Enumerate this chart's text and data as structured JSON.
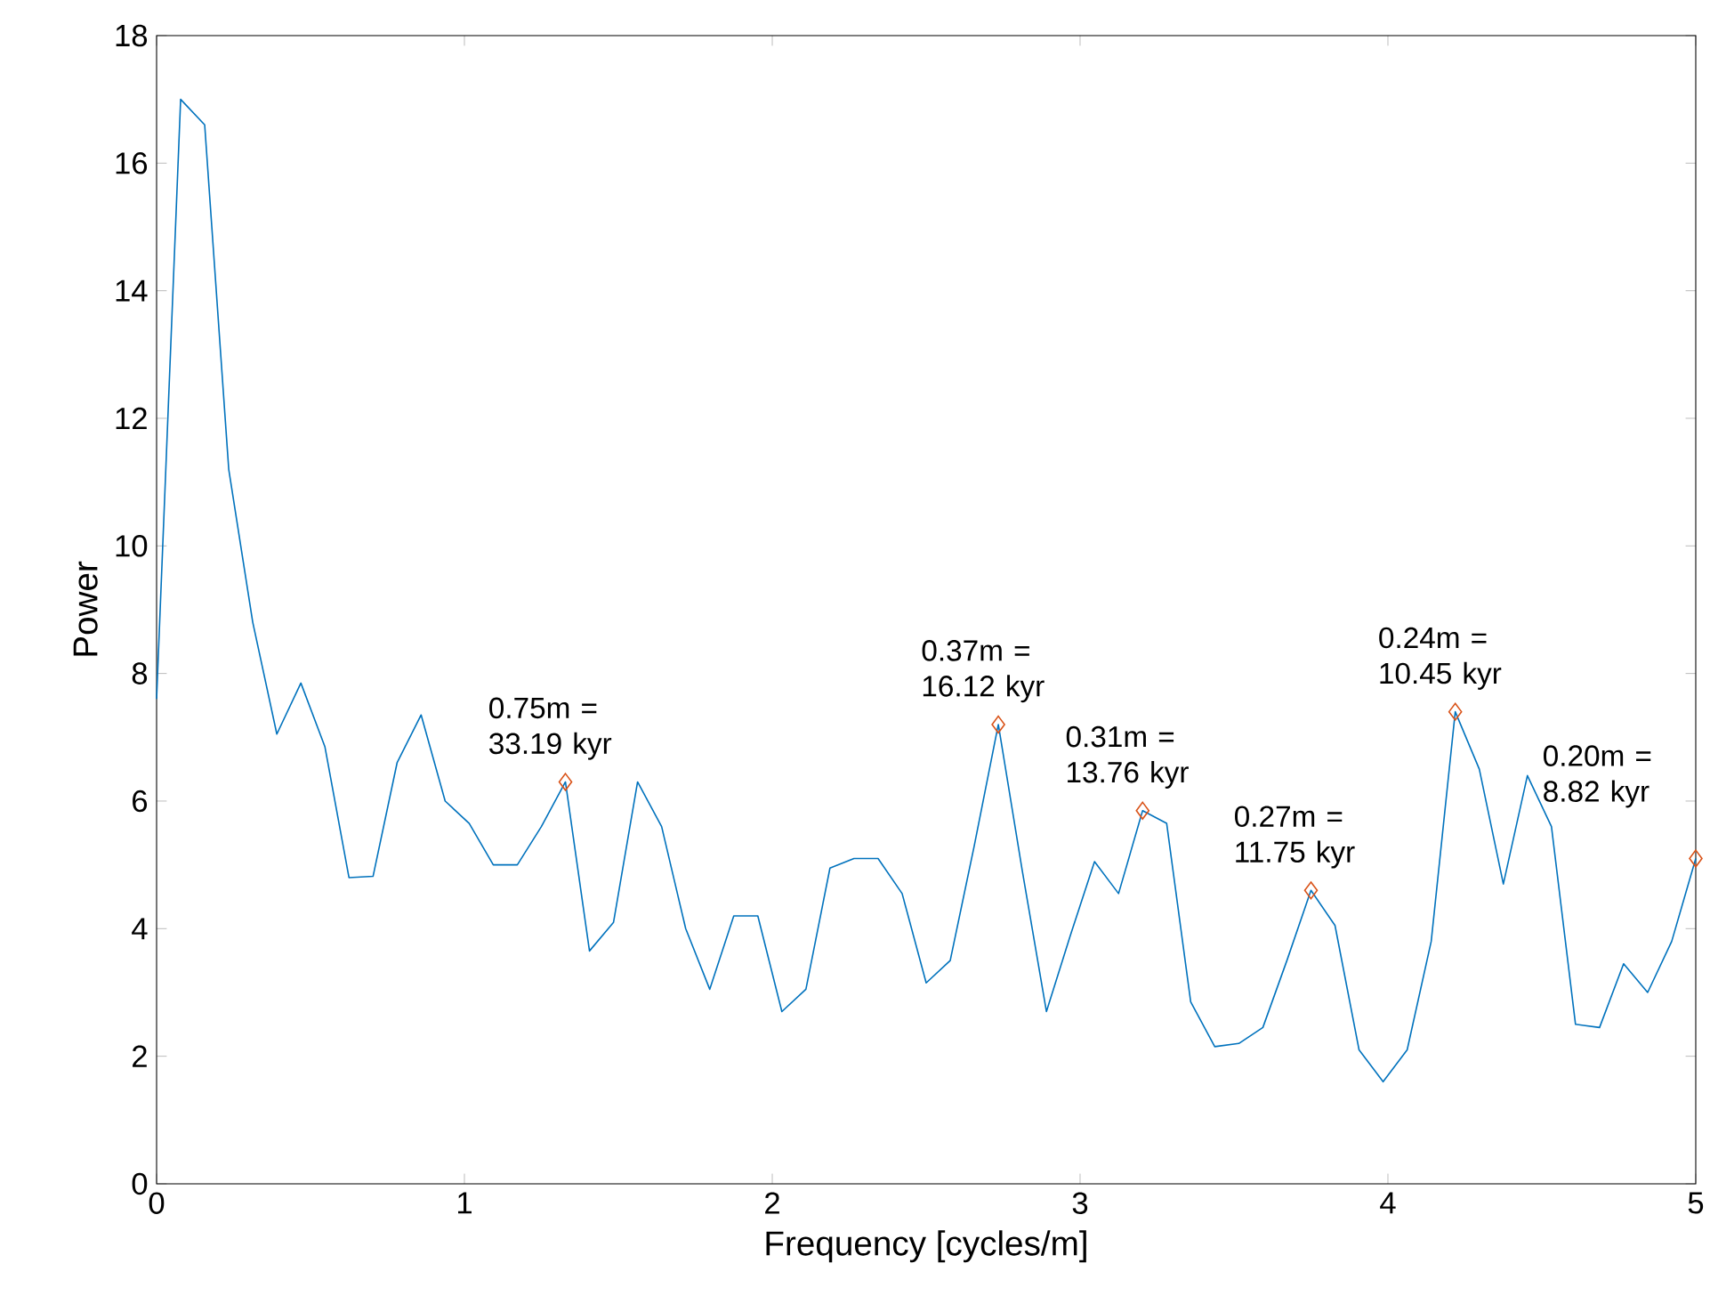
{
  "chart_data": {
    "type": "line",
    "xlabel": "Frequency [cycles/m]",
    "ylabel": "Power",
    "xlim": [
      0,
      5
    ],
    "ylim": [
      0,
      18
    ],
    "xticks": [
      0,
      1,
      2,
      3,
      4,
      5
    ],
    "yticks": [
      0,
      2,
      4,
      6,
      8,
      10,
      12,
      14,
      16,
      18
    ],
    "grid": false,
    "series": [
      {
        "color": "#0072bd",
        "marker": "none",
        "x": [
          0,
          0.078125,
          0.15625,
          0.234375,
          0.3125,
          0.390625,
          0.46875,
          0.546875,
          0.625,
          0.703125,
          0.78125,
          0.859375,
          0.9375,
          1.015625,
          1.09375,
          1.171875,
          1.25,
          1.328125,
          1.40625,
          1.484375,
          1.5625,
          1.640625,
          1.71875,
          1.796875,
          1.875,
          1.953125,
          2.03125,
          2.109375,
          2.1875,
          2.265625,
          2.34375,
          2.421875,
          2.5,
          2.578125,
          2.65625,
          2.734375,
          2.8125,
          2.890625,
          2.96875,
          3.046875,
          3.125,
          3.203125,
          3.28125,
          3.359375,
          3.4375,
          3.515625,
          3.59375,
          3.671875,
          3.75,
          3.828125,
          3.90625,
          3.984375,
          4.0625,
          4.140625,
          4.21875,
          4.296875,
          4.375,
          4.453125,
          4.53125,
          4.609375,
          4.6875,
          4.765625,
          4.84375,
          4.921875,
          5
        ],
        "values": [
          7.6,
          17.0,
          16.6,
          11.2,
          8.8,
          7.05,
          7.85,
          6.85,
          4.8,
          4.82,
          6.6,
          7.35,
          6.0,
          5.65,
          5.0,
          5.0,
          5.6,
          6.3,
          3.65,
          4.1,
          6.3,
          5.6,
          4.0,
          3.05,
          4.2,
          4.2,
          2.7,
          3.05,
          4.95,
          5.1,
          5.1,
          4.55,
          3.15,
          3.5,
          5.3,
          7.2,
          4.9,
          2.7,
          3.9,
          5.05,
          4.55,
          5.85,
          5.65,
          2.85,
          2.15,
          2.2,
          2.45,
          3.5,
          4.6,
          4.05,
          2.1,
          1.6,
          2.1,
          3.8,
          7.4,
          6.5,
          4.7,
          6.4,
          5.6,
          2.5,
          2.45,
          3.45,
          3.0,
          3.8,
          5.1
        ]
      },
      {
        "type": "scatter",
        "color": "#d95319",
        "marker": "diamond",
        "x": [
          1.328125,
          2.734375,
          3.203125,
          3.75,
          4.21875,
          5
        ],
        "values": [
          6.3,
          7.2,
          5.85,
          4.6,
          7.4,
          5.1
        ]
      }
    ],
    "annotations": [
      {
        "text": "0.75m = 33.19 kyr",
        "x": 1.328125,
        "y": 6.3
      },
      {
        "text": "0.37m = 16.12 kyr",
        "x": 2.734375,
        "y": 7.2
      },
      {
        "text": "0.31m = 13.76 kyr",
        "x": 3.203125,
        "y": 5.85
      },
      {
        "text": "0.27m = 11.75 kyr",
        "x": 3.75,
        "y": 4.6
      },
      {
        "text": "0.24m = 10.45 kyr",
        "x": 4.21875,
        "y": 7.4
      },
      {
        "text": "0.20m = 8.82 kyr",
        "x": 5,
        "y": 5.1
      }
    ]
  }
}
